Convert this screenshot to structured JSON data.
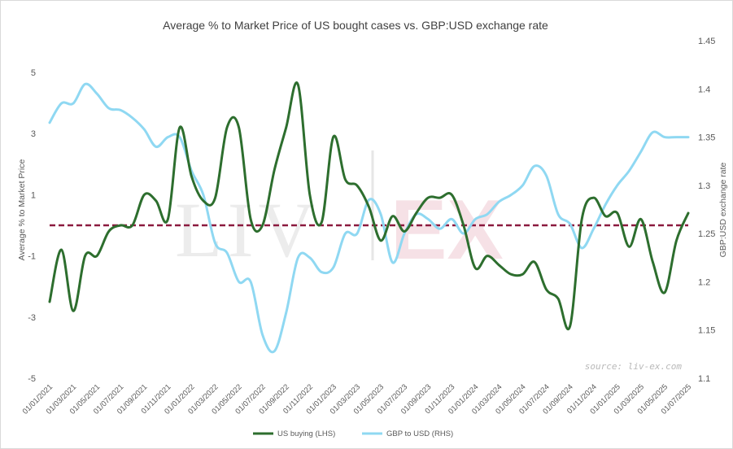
{
  "chart_data": {
    "type": "line",
    "title": "Average % to Market Price of US bought cases vs. GBP:USD exchange rate",
    "ylabel": "Average % to Market Price",
    "y2label": "GBP:USD exchange rate",
    "ylim": [
      -5,
      5
    ],
    "y2lim": [
      1.1,
      1.45
    ],
    "yticks": [
      "5",
      "3",
      "1",
      "-1",
      "-3",
      "-5"
    ],
    "y2ticks": [
      "1.45",
      "1.4",
      "1.35",
      "1.3",
      "1.25",
      "1.2",
      "1.15",
      "1.1"
    ],
    "categories": [
      "01/01/2021",
      "01/03/2021",
      "01/05/2021",
      "01/07/2021",
      "01/09/2021",
      "01/11/2021",
      "01/01/2022",
      "01/03/2022",
      "01/05/2022",
      "01/07/2022",
      "01/09/2022",
      "01/11/2022",
      "01/01/2023",
      "01/03/2023",
      "01/05/2023",
      "01/07/2023",
      "01/09/2023",
      "01/11/2023",
      "01/01/2024",
      "01/03/2024",
      "01/05/2024",
      "01/07/2024",
      "01/09/2024",
      "01/11/2024",
      "01/01/2025",
      "01/03/2025",
      "01/05/2025",
      "01/07/2025"
    ],
    "reference_line": {
      "y": 0,
      "color": "#8b1a3f",
      "style": "dashed"
    },
    "series": [
      {
        "name": "US buying (LHS)",
        "axis": "left",
        "color": "#2d6e2e",
        "x": [
          0,
          1,
          2,
          3,
          4,
          5,
          6,
          7,
          8,
          9,
          10,
          11,
          12,
          13,
          14,
          15,
          16,
          17,
          18,
          19,
          20,
          21,
          22,
          23,
          24,
          25,
          26,
          27,
          28,
          29,
          30,
          31,
          32,
          33,
          34,
          35,
          36,
          37,
          38,
          39,
          40,
          41,
          42,
          43,
          44,
          45,
          46,
          47,
          48,
          49,
          50,
          51,
          52,
          53,
          54
        ],
        "values": [
          -2.5,
          -0.8,
          -2.8,
          -1.0,
          -1.0,
          -0.2,
          0.0,
          0.0,
          1.0,
          0.8,
          0.2,
          3.2,
          1.6,
          0.8,
          0.9,
          3.2,
          3.2,
          0.2,
          0.0,
          1.8,
          3.2,
          4.6,
          1.0,
          0.1,
          2.9,
          1.5,
          1.3,
          0.6,
          -0.5,
          0.3,
          -0.2,
          0.4,
          0.9,
          0.9,
          1.0,
          0.0,
          -1.4,
          -1.0,
          -1.3,
          -1.6,
          -1.6,
          -1.2,
          -2.1,
          -2.4,
          -3.3,
          0.2,
          0.9,
          0.3,
          0.4,
          -0.7,
          0.2,
          -1.2,
          -2.2,
          -0.5,
          0.4
        ]
      },
      {
        "name": "GBP to USD (RHS)",
        "axis": "right",
        "color": "#8fd8f2",
        "x": [
          0,
          1,
          2,
          3,
          4,
          5,
          6,
          7,
          8,
          9,
          10,
          11,
          12,
          13,
          14,
          15,
          16,
          17,
          18,
          19,
          20,
          21,
          22,
          23,
          24,
          25,
          26,
          27,
          28,
          29,
          30,
          31,
          32,
          33,
          34,
          35,
          36,
          37,
          38,
          39,
          40,
          41,
          42,
          43,
          44,
          45,
          46,
          47,
          48,
          49,
          50,
          51,
          52,
          53,
          54
        ],
        "values": [
          1.365,
          1.385,
          1.385,
          1.405,
          1.395,
          1.38,
          1.378,
          1.37,
          1.358,
          1.34,
          1.35,
          1.35,
          1.315,
          1.29,
          1.24,
          1.23,
          1.2,
          1.2,
          1.145,
          1.128,
          1.168,
          1.225,
          1.225,
          1.21,
          1.215,
          1.25,
          1.25,
          1.285,
          1.27,
          1.22,
          1.25,
          1.27,
          1.265,
          1.255,
          1.265,
          1.25,
          1.265,
          1.27,
          1.283,
          1.29,
          1.3,
          1.32,
          1.31,
          1.27,
          1.26,
          1.235,
          1.255,
          1.28,
          1.3,
          1.315,
          1.335,
          1.355,
          1.35,
          1.35,
          1.35
        ]
      }
    ],
    "legend_position": "bottom"
  },
  "watermark": {
    "left": "LIV",
    "right": "EX"
  },
  "source": "source: liv-ex.com"
}
